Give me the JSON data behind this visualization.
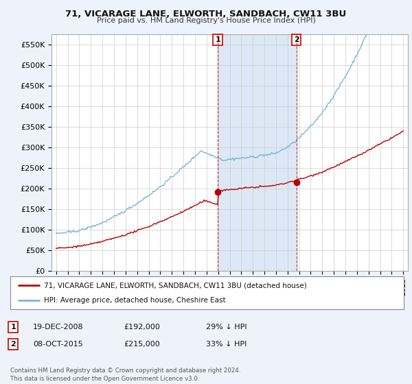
{
  "title1": "71, VICARAGE LANE, ELWORTH, SANDBACH, CW11 3BU",
  "title2": "Price paid vs. HM Land Registry's House Price Index (HPI)",
  "ylim": [
    0,
    575000
  ],
  "yticks": [
    0,
    50000,
    100000,
    150000,
    200000,
    250000,
    300000,
    350000,
    400000,
    450000,
    500000,
    550000
  ],
  "ytick_labels": [
    "£0",
    "£50K",
    "£100K",
    "£150K",
    "£200K",
    "£250K",
    "£300K",
    "£350K",
    "£400K",
    "£450K",
    "£500K",
    "£550K"
  ],
  "hpi_color": "#7ab5d8",
  "price_color": "#bb0000",
  "marker1_date": 2008.97,
  "marker1_price": 192000,
  "marker1_label": "1",
  "marker2_date": 2015.77,
  "marker2_price": 215000,
  "marker2_label": "2",
  "legend_line1": "71, VICARAGE LANE, ELWORTH, SANDBACH, CW11 3BU (detached house)",
  "legend_line2": "HPI: Average price, detached house, Cheshire East",
  "table_row1": [
    "1",
    "19-DEC-2008",
    "£192,000",
    "29% ↓ HPI"
  ],
  "table_row2": [
    "2",
    "08-OCT-2015",
    "£215,000",
    "33% ↓ HPI"
  ],
  "footer": "Contains HM Land Registry data © Crown copyright and database right 2024.\nThis data is licensed under the Open Government Licence v3.0.",
  "background_color": "#eef2fa",
  "plot_bg_color": "#ffffff",
  "grid_color": "#cccccc",
  "span_color": "#dce8f5"
}
